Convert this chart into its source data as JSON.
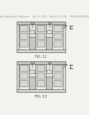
{
  "bg_color": "#f2f2ee",
  "header_text": "Patent Application Publication     Jan. 23, 2014    Sheet 12 of 104     US 2014/0264238 A1",
  "header_fontsize": 2.2,
  "fig1_label": "FIG. 11",
  "fig2_label": "FIG. 13",
  "line_color": "#555555",
  "bg_panel": "#e8e8e2",
  "fill_light": "#d8d8d0",
  "fill_dark": "#aaaaaa",
  "fill_white": "#f0f0ec",
  "fill_mid": "#c8c8c0"
}
